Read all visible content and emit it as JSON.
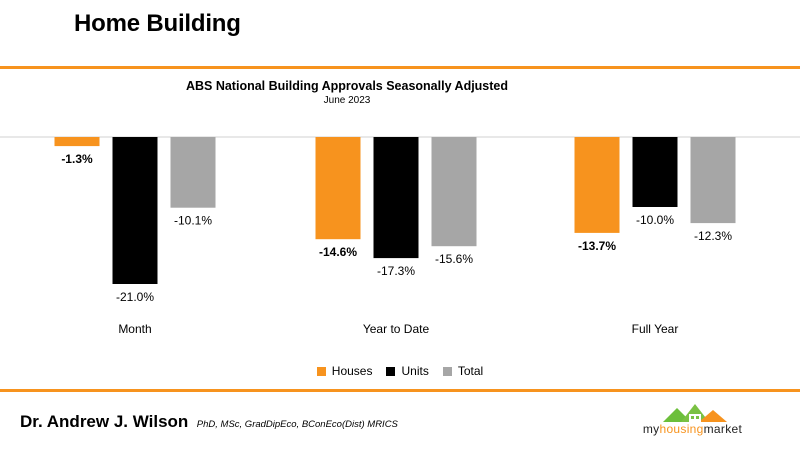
{
  "page": {
    "title": "Home Building",
    "accent_color": "#f7931e"
  },
  "author": {
    "name": "Dr. Andrew J. Wilson",
    "credentials": "PhD, MSc, GradDipEco, BConEco(Dist) MRICS"
  },
  "logo": {
    "text_before": "my",
    "text_accent": "housing",
    "text_after": "market",
    "icon": "house-roofs-icon"
  },
  "chart_data": {
    "type": "bar",
    "title": "ABS National Building Approvals Seasonally Adjusted",
    "subtitle": "June 2023",
    "categories": [
      "Month",
      "Year to Date",
      "Full Year"
    ],
    "series": [
      {
        "name": "Houses",
        "color": "#f7931e",
        "values": [
          -1.3,
          -14.6,
          -13.7
        ],
        "labels": [
          "-1.3%",
          "-14.6%",
          "-13.7%"
        ],
        "bold_labels": true
      },
      {
        "name": "Units",
        "color": "#000000",
        "values": [
          -21.0,
          -17.3,
          -10.0
        ],
        "labels": [
          "-21.0%",
          "-17.3%",
          "-10.0%"
        ],
        "bold_labels": false
      },
      {
        "name": "Total",
        "color": "#a6a6a6",
        "values": [
          -10.1,
          -15.6,
          -12.3
        ],
        "labels": [
          "-10.1%",
          "-15.6%",
          "-12.3%"
        ],
        "bold_labels": false
      }
    ],
    "ylim": [
      -21.0,
      0
    ],
    "grid": false,
    "legend_position": "bottom"
  }
}
